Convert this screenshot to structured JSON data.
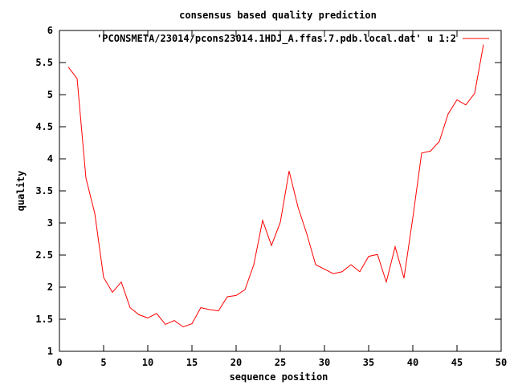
{
  "chart_data": {
    "type": "line",
    "title": "consensus based quality prediction",
    "xlabel": "sequence position",
    "ylabel": "quality",
    "xlim": [
      0,
      50
    ],
    "ylim": [
      1,
      6
    ],
    "xticks": [
      0,
      5,
      10,
      15,
      20,
      25,
      30,
      35,
      40,
      45,
      50
    ],
    "yticks": [
      1,
      1.5,
      2,
      2.5,
      3,
      3.5,
      4,
      4.5,
      5,
      5.5,
      6
    ],
    "grid": false,
    "legend_position": "top-right",
    "series": [
      {
        "name": "'PCONSMETA/23014/pcons23014.1HDJ_A.ffas.7.pdb.local.dat' u 1:2",
        "color": "#ff0000",
        "x": [
          1,
          2,
          3,
          4,
          5,
          6,
          7,
          8,
          9,
          10,
          11,
          12,
          13,
          14,
          15,
          16,
          17,
          18,
          19,
          20,
          21,
          22,
          23,
          24,
          25,
          26,
          27,
          28,
          29,
          30,
          31,
          32,
          33,
          34,
          35,
          36,
          37,
          38,
          39,
          40,
          41,
          42,
          43,
          44,
          45,
          46,
          47,
          48
        ],
        "y": [
          5.43,
          5.25,
          3.7,
          3.15,
          2.15,
          1.92,
          2.08,
          1.68,
          1.57,
          1.52,
          1.59,
          1.42,
          1.48,
          1.38,
          1.43,
          1.68,
          1.65,
          1.63,
          1.85,
          1.87,
          1.96,
          2.35,
          3.04,
          2.65,
          3.01,
          3.81,
          3.25,
          2.83,
          2.35,
          2.28,
          2.21,
          2.24,
          2.35,
          2.24,
          2.48,
          2.51,
          2.08,
          2.63,
          2.14,
          3.08,
          4.09,
          4.12,
          4.27,
          4.7,
          4.92,
          4.84,
          5.02,
          5.78
        ]
      }
    ]
  }
}
